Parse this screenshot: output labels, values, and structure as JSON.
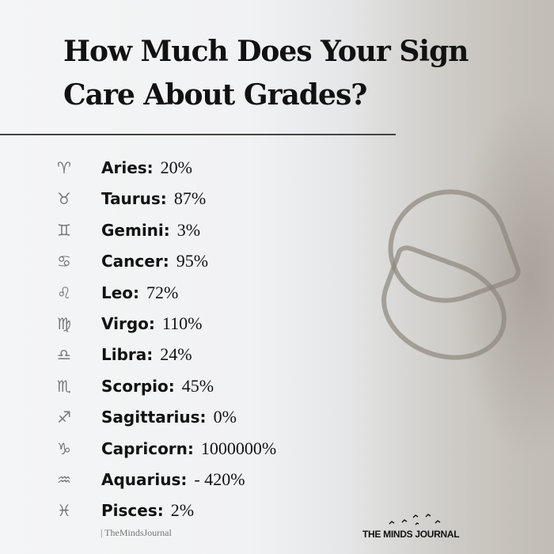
{
  "title_lines": [
    "How Much Does Your Sign",
    "Care About Grades?"
  ],
  "signs": [
    {
      "icon": "aries-icon",
      "glyph": "♈︎",
      "name": "Aries:",
      "value": "20%"
    },
    {
      "icon": "taurus-icon",
      "glyph": "♉︎",
      "name": "Taurus:",
      "value": "87%"
    },
    {
      "icon": "gemini-icon",
      "glyph": "♊︎",
      "name": "Gemini:",
      "value": "3%"
    },
    {
      "icon": "cancer-icon",
      "glyph": "♋︎",
      "name": "Cancer:",
      "value": "95%"
    },
    {
      "icon": "leo-icon",
      "glyph": "♌︎",
      "name": "Leo:",
      "value": "72%"
    },
    {
      "icon": "virgo-icon",
      "glyph": "♍︎",
      "name": "Virgo:",
      "value": "110%"
    },
    {
      "icon": "libra-icon",
      "glyph": "♎︎",
      "name": "Libra:",
      "value": "24%"
    },
    {
      "icon": "scorpio-icon",
      "glyph": "♏︎",
      "name": "Scorpio:",
      "value": "45%"
    },
    {
      "icon": "sagittarius-icon",
      "glyph": "♐︎",
      "name": "Sagittarius:",
      "value": "0%"
    },
    {
      "icon": "capricorn-icon",
      "glyph": "♑︎",
      "name": "Capricorn:",
      "value": "1000000%"
    },
    {
      "icon": "aquarius-icon",
      "glyph": "♒︎",
      "name": "Aquarius:",
      "value": "- 420%"
    },
    {
      "icon": "pisces-icon",
      "glyph": "♓︎",
      "name": "Pisces:",
      "value": "2%"
    }
  ],
  "credit": "| TheMindsJournal",
  "logo": "THE MINDS JOURNAL"
}
